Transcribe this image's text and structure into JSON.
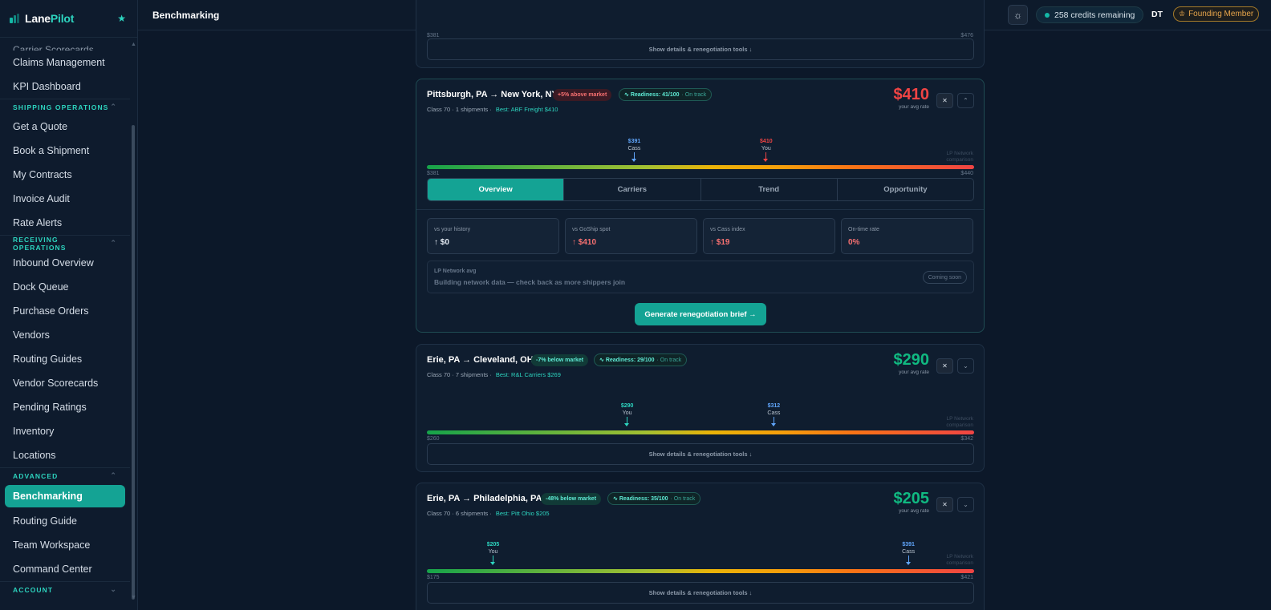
{
  "sidebar": {
    "brand": {
      "name_main": "Lane",
      "name_accent": "Pilot"
    },
    "partial_item": "Carrier Scorecards",
    "items_top": [
      "Claims Management",
      "KPI Dashboard"
    ],
    "section_shipping": "SHIPPING OPERATIONS",
    "shipping_items": [
      "Get a Quote",
      "Book a Shipment",
      "My Contracts",
      "Invoice Audit",
      "Rate Alerts"
    ],
    "section_receiving": "RECEIVING OPERATIONS",
    "receiving_items": [
      "Inbound Overview",
      "Dock Queue",
      "Purchase Orders",
      "Vendors",
      "Routing Guides",
      "Vendor Scorecards",
      "Pending Ratings",
      "Inventory",
      "Locations"
    ],
    "section_advanced": "ADVANCED",
    "advanced_items": [
      "Benchmarking",
      "Routing Guide",
      "Team Workspace",
      "Command Center"
    ],
    "section_account": "ACCOUNT"
  },
  "topbar": {
    "title": "Benchmarking",
    "credits": "258 credits remaining",
    "user_initials": "DT",
    "badge": "Founding Member"
  },
  "top_partial": {
    "min_label": "$381",
    "max_label": "$476",
    "show_details": "Show details & renegotiation tools ↓"
  },
  "lanes": [
    {
      "route": "Pittsburgh, PA → New York, NY",
      "market_pill": "+5% above market",
      "readiness": "Readiness: 41/100",
      "readiness_status": "· On track",
      "meta": "Class 70 · 1 shipments ·",
      "best": "Best: ABF Freight $410",
      "price": "$410",
      "price_sub": "your avg rate",
      "markers": [
        {
          "value": "$391",
          "who": "Cass",
          "fraction": 0.379
        },
        {
          "value": "$410",
          "who": "You",
          "fraction": 0.62
        }
      ],
      "network_label": "LP Network comparison",
      "min_label": "$381",
      "max_label": "$440",
      "tabs": [
        "Overview",
        "Carriers",
        "Trend",
        "Opportunity"
      ],
      "metrics": [
        {
          "label": "vs your history",
          "value": "↑ $0"
        },
        {
          "label": "vs GoShip spot",
          "value": "↑ $410"
        },
        {
          "label": "vs Cass index",
          "value": "↑ $19"
        },
        {
          "label": "On-time rate",
          "value": "0%"
        }
      ],
      "network_title": "LP Network avg",
      "network_text": "Building network data — check back as more shippers join",
      "coming_soon": "Coming soon",
      "cta": "Generate renegotiation brief →"
    },
    {
      "route": "Erie, PA → Cleveland, OH",
      "market_pill": "-7% below market",
      "readiness": "Readiness: 29/100",
      "readiness_status": "· On track",
      "meta": "Class 70 · 7 shipments ·",
      "best": "Best: R&L Carriers $269",
      "price": "$290",
      "price_sub": "your avg rate",
      "markers": [
        {
          "value": "$290",
          "who": "You",
          "fraction": 0.366
        },
        {
          "value": "$312",
          "who": "Cass",
          "fraction": 0.634
        }
      ],
      "network_label": "LP Network comparison",
      "min_label": "$260",
      "max_label": "$342",
      "show_details": "Show details & renegotiation tools ↓"
    },
    {
      "route": "Erie, PA → Philadelphia, PA",
      "market_pill": "-48% below market",
      "readiness": "Readiness: 35/100",
      "readiness_status": "· On track",
      "meta": "Class 70 · 6 shipments ·",
      "best": "Best: Pitt Ohio $205",
      "price": "$205",
      "price_sub": "your avg rate",
      "markers": [
        {
          "value": "$205",
          "who": "You",
          "fraction": 0.121
        },
        {
          "value": "$391",
          "who": "Cass",
          "fraction": 0.88
        }
      ],
      "network_label": "LP Network comparison",
      "min_label": "$175",
      "max_label": "$421",
      "show_details": "Show details & renegotiation tools ↓"
    }
  ],
  "colors": {
    "accent": "#14a394",
    "danger": "#ef4444",
    "success": "#10b981",
    "cass": "#60a5fa"
  }
}
